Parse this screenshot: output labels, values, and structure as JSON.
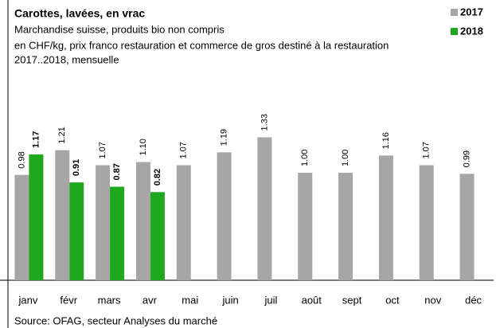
{
  "chart_data": {
    "type": "bar",
    "title": "Carottes, lavées, en vrac",
    "subtitle": [
      "Marchandise suisse, produits bio non compris",
      "en CHF/kg,  prix franco restauration et commerce de gros destiné à la restauration",
      "2017..2018, mensuelle"
    ],
    "source": "Source:  OFAG, secteur Analyses du marché",
    "categories": [
      "janv",
      "févr",
      "mars",
      "avr",
      "mai",
      "juin",
      "juil",
      "août",
      "sept",
      "oct",
      "nov",
      "déc"
    ],
    "series": [
      {
        "name": "2017",
        "color": "#a6a6a6",
        "values": [
          0.98,
          1.21,
          1.07,
          1.1,
          1.07,
          1.19,
          1.33,
          1.0,
          1.0,
          1.16,
          1.07,
          0.99
        ],
        "value_labels": [
          "0.98",
          "1.21",
          "1.07",
          "1.10",
          "1.07",
          "1.19",
          "1.33",
          "1.00",
          "1.00",
          "1.16",
          "1.07",
          "0.99"
        ]
      },
      {
        "name": "2018",
        "color": "#1ea81e",
        "values": [
          1.17,
          0.91,
          0.87,
          0.82,
          null,
          null,
          null,
          null,
          null,
          null,
          null,
          null
        ],
        "value_labels": [
          "1.17",
          "0.91",
          "0.87",
          "0.82",
          null,
          null,
          null,
          null,
          null,
          null,
          null,
          null
        ]
      }
    ]
  }
}
